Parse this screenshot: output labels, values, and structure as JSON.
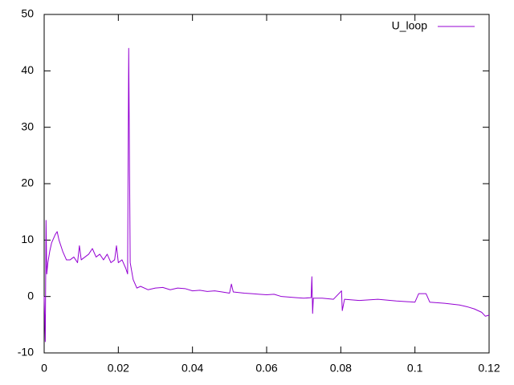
{
  "chart_data": {
    "type": "line",
    "x": [
      0,
      0.0003,
      0.0005,
      0.0007,
      0.001,
      0.0015,
      0.002,
      0.003,
      0.0035,
      0.004,
      0.005,
      0.006,
      0.007,
      0.008,
      0.009,
      0.0095,
      0.01,
      0.011,
      0.012,
      0.013,
      0.014,
      0.015,
      0.016,
      0.017,
      0.018,
      0.019,
      0.0195,
      0.02,
      0.021,
      0.022,
      0.0225,
      0.0228,
      0.0232,
      0.024,
      0.025,
      0.026,
      0.028,
      0.03,
      0.032,
      0.034,
      0.036,
      0.038,
      0.04,
      0.042,
      0.044,
      0.046,
      0.048,
      0.05,
      0.0505,
      0.051,
      0.054,
      0.056,
      0.058,
      0.06,
      0.062,
      0.064,
      0.066,
      0.068,
      0.07,
      0.072,
      0.0722,
      0.0724,
      0.0726,
      0.075,
      0.078,
      0.0802,
      0.0804,
      0.081,
      0.085,
      0.09,
      0.095,
      0.1,
      0.101,
      0.103,
      0.104,
      0.108,
      0.112,
      0.114,
      0.116,
      0.118,
      0.119,
      0.12
    ],
    "series": [
      {
        "name": "U_loop",
        "color": "#9400d3",
        "values": [
          0,
          -8,
          13.5,
          4,
          6,
          8,
          9.5,
          11,
          11.5,
          10,
          8,
          6.5,
          6.5,
          7,
          6,
          9,
          6.5,
          7,
          7.5,
          8.5,
          7,
          7.5,
          6.5,
          7.5,
          6,
          6.5,
          9,
          6,
          6.5,
          5,
          4,
          44,
          6,
          3,
          1.5,
          1.8,
          1.2,
          1.5,
          1.6,
          1.2,
          1.5,
          1.4,
          1.0,
          1.1,
          0.9,
          1.0,
          0.8,
          0.6,
          2.2,
          0.8,
          0.6,
          0.5,
          0.4,
          0.3,
          0.4,
          0,
          -0.1,
          -0.2,
          -0.3,
          -0.2,
          3.5,
          -3,
          -0.3,
          -0.3,
          -0.5,
          1,
          -2.5,
          -0.5,
          -0.7,
          -0.5,
          -0.8,
          -1,
          0.5,
          0.5,
          -1,
          -1.2,
          -1.5,
          -1.8,
          -2.2,
          -2.8,
          -3.5,
          -3.3
        ]
      }
    ],
    "xlim": [
      0,
      0.12
    ],
    "xticks": [
      0,
      0.02,
      0.04,
      0.06,
      0.08,
      0.1,
      0.12
    ],
    "ylim": [
      -10,
      50
    ],
    "yticks": [
      -10,
      0,
      10,
      20,
      30,
      40,
      50
    ],
    "legend": "top-right"
  }
}
